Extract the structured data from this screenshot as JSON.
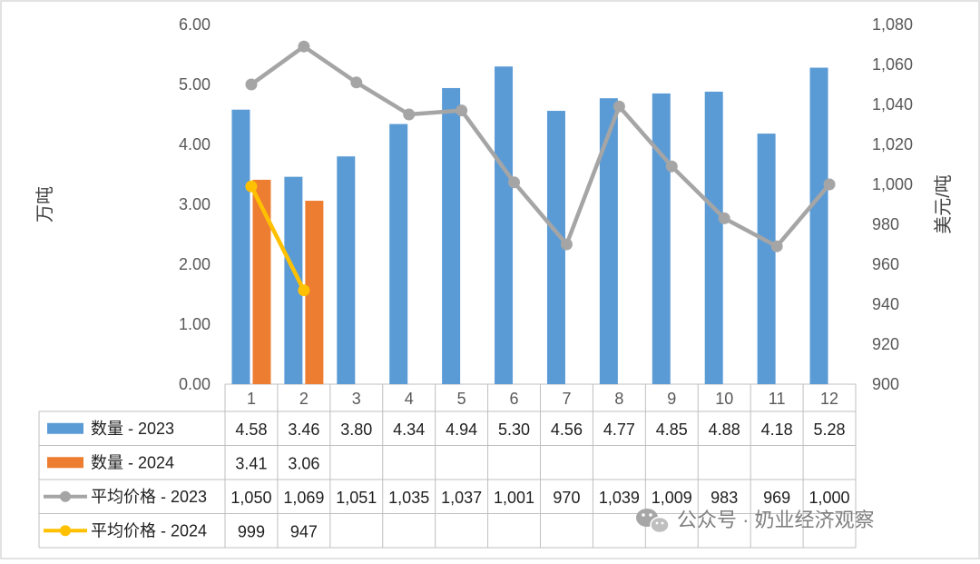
{
  "chart_data": {
    "type": "bar",
    "categories": [
      "1",
      "2",
      "3",
      "4",
      "5",
      "6",
      "7",
      "8",
      "9",
      "10",
      "11",
      "12"
    ],
    "y_left": {
      "label": "万吨",
      "ylim": [
        0,
        6
      ],
      "ticks": [
        "0.00",
        "1.00",
        "2.00",
        "3.00",
        "4.00",
        "5.00",
        "6.00"
      ]
    },
    "y_right": {
      "label": "美元/吨",
      "ylim": [
        900,
        1080
      ],
      "ticks": [
        "900",
        "920",
        "940",
        "960",
        "980",
        "1,000",
        "1,020",
        "1,040",
        "1,060",
        "1,080"
      ]
    },
    "grid": false,
    "legend_placement": "bottom-table",
    "series": [
      {
        "name": "数量 - 2023",
        "kind": "bar",
        "axis": "left",
        "color": "#5B9BD5",
        "values": [
          4.58,
          3.46,
          3.8,
          4.34,
          4.94,
          5.3,
          4.56,
          4.77,
          4.85,
          4.88,
          4.18,
          5.28
        ],
        "labels": [
          "4.58",
          "3.46",
          "3.80",
          "4.34",
          "4.94",
          "5.30",
          "4.56",
          "4.77",
          "4.85",
          "4.88",
          "4.18",
          "5.28"
        ]
      },
      {
        "name": "数量 - 2024",
        "kind": "bar",
        "axis": "left",
        "color": "#ED7D31",
        "values": [
          3.41,
          3.06,
          null,
          null,
          null,
          null,
          null,
          null,
          null,
          null,
          null,
          null
        ],
        "labels": [
          "3.41",
          "3.06",
          "",
          "",
          "",
          "",
          "",
          "",
          "",
          "",
          "",
          ""
        ]
      },
      {
        "name": "平均价格 - 2023",
        "kind": "line",
        "axis": "right",
        "color": "#A5A5A5",
        "values": [
          1050,
          1069,
          1051,
          1035,
          1037,
          1001,
          970,
          1039,
          1009,
          983,
          969,
          1000
        ],
        "labels": [
          "1,050",
          "1,069",
          "1,051",
          "1,035",
          "1,037",
          "1,001",
          "970",
          "1,039",
          "1,009",
          "983",
          "969",
          "1,000"
        ]
      },
      {
        "name": "平均价格 - 2024",
        "kind": "line",
        "axis": "right",
        "color": "#FFC000",
        "values": [
          999,
          947,
          null,
          null,
          null,
          null,
          null,
          null,
          null,
          null,
          null,
          null
        ],
        "labels": [
          "999",
          "947",
          "",
          "",
          "",
          "",
          "",
          "",
          "",
          "",
          "",
          ""
        ]
      }
    ]
  },
  "watermark": {
    "text": "公众号 · 奶业经济观察"
  }
}
